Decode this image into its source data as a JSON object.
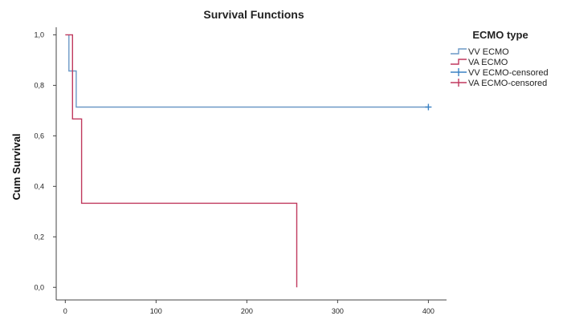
{
  "chart_data": {
    "type": "line",
    "step": true,
    "title": "Survival Functions",
    "xlabel": "",
    "ylabel": "Cum Survival",
    "xlim": [
      -10,
      420
    ],
    "ylim": [
      -0.05,
      1.03
    ],
    "xticks": [
      0,
      100,
      200,
      300,
      400
    ],
    "yticks": [
      0.0,
      0.2,
      0.4,
      0.6,
      0.8,
      1.0
    ],
    "xtick_labels": [
      "0",
      "100",
      "200",
      "300",
      "400"
    ],
    "ytick_labels": [
      "0,0",
      "0,2",
      "0,4",
      "0,6",
      "0,8",
      "1,0"
    ],
    "grid": false,
    "legend": {
      "title": "ECMO type",
      "position": "top-right",
      "entries": [
        "VV ECMO",
        "VA ECMO",
        "VV ECMO-censored",
        "VA ECMO-censored"
      ]
    },
    "series": [
      {
        "name": "VV ECMO",
        "color": "#6b98c6",
        "x": [
          4,
          4,
          12,
          12,
          400
        ],
        "y": [
          1.0,
          0.857,
          0.857,
          0.714,
          0.714
        ]
      },
      {
        "name": "VA ECMO",
        "color": "#c0395e",
        "x": [
          0,
          8,
          8,
          18,
          18,
          255,
          255
        ],
        "y": [
          1.0,
          1.0,
          0.667,
          0.667,
          0.333,
          0.333,
          0.0
        ]
      }
    ],
    "censored": [
      {
        "series": "VV ECMO-censored",
        "color": "#3b82c4",
        "x": 400,
        "y": 0.714
      }
    ]
  }
}
